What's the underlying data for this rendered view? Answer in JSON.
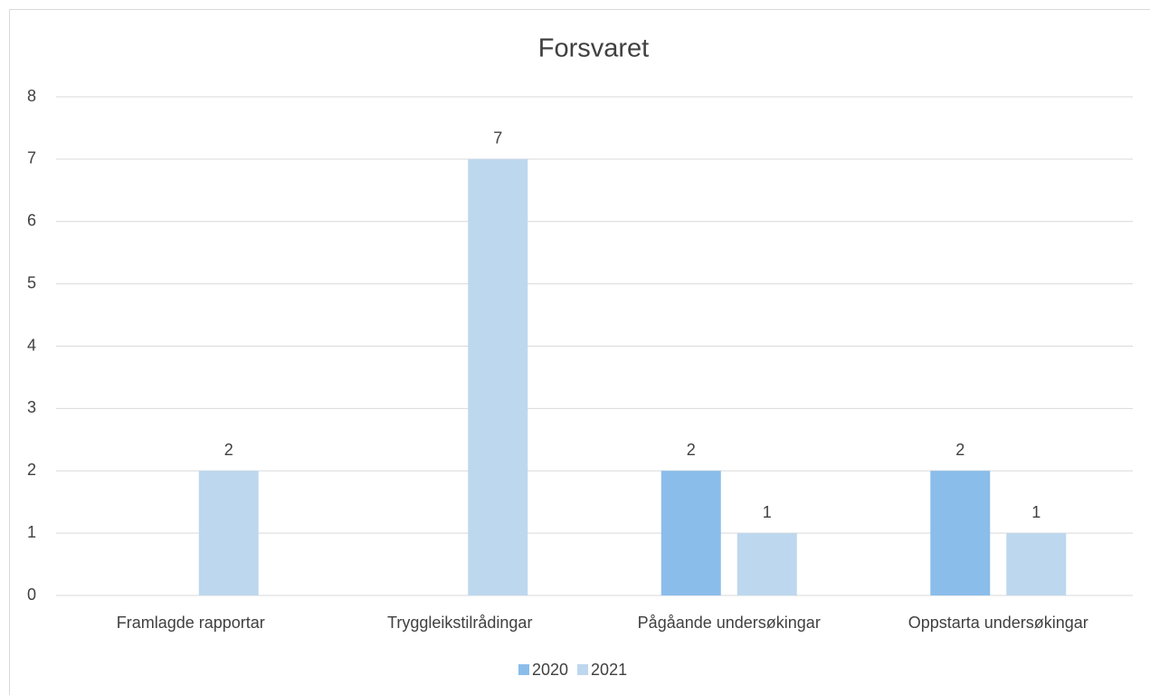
{
  "chart_data": {
    "type": "bar",
    "title": "Forsvaret",
    "categories": [
      "Framlagde rapportar",
      "Tryggleikstilrådingar",
      "Pågåande undersøkingar",
      "Oppstarta undersøkingar"
    ],
    "series": [
      {
        "name": "2020",
        "color": "#8bbdeb",
        "values": [
          null,
          null,
          2,
          2
        ]
      },
      {
        "name": "2021",
        "color": "#bdd7ee",
        "values": [
          2,
          7,
          1,
          1
        ]
      }
    ],
    "ylim": [
      0,
      8
    ],
    "yticks": [
      0,
      1,
      2,
      3,
      4,
      5,
      6,
      7,
      8
    ],
    "grid": true,
    "legend": "bottom"
  }
}
